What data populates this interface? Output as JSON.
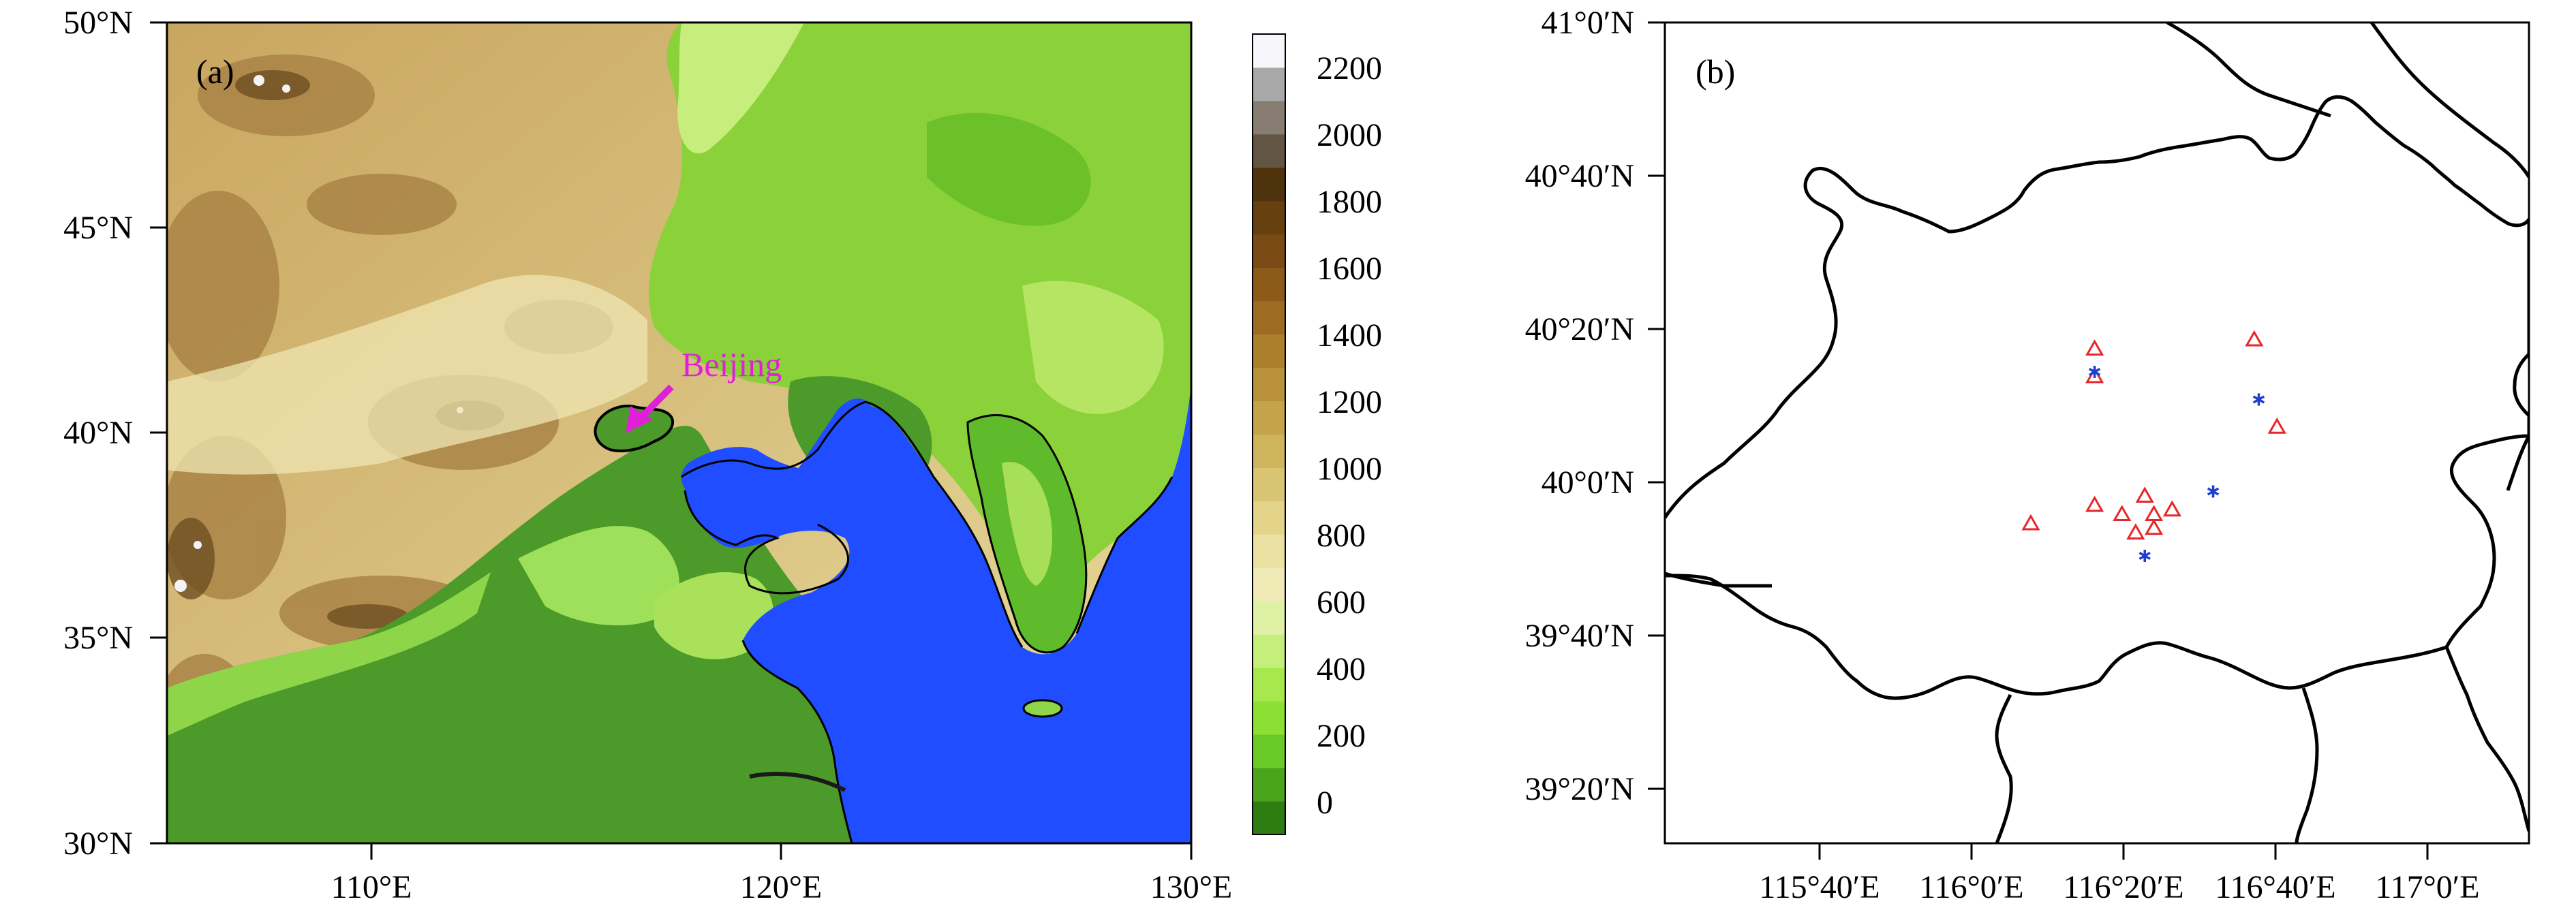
{
  "panel_a": {
    "label": "(a)",
    "lat_ticks": [
      "50°N",
      "45°N",
      "40°N",
      "35°N",
      "30°N"
    ],
    "lon_ticks": [
      "110°E",
      "120°E",
      "130°E"
    ],
    "annotation": "Beijing",
    "colorbar_ticks": [
      "2200",
      "2000",
      "1800",
      "1600",
      "1400",
      "1200",
      "1000",
      "800",
      "600",
      "400",
      "200",
      "0"
    ],
    "colorbar_colors": [
      "#2e7d12",
      "#4aa51c",
      "#6acb28",
      "#8ce034",
      "#a6e84e",
      "#c3ef7a",
      "#dff1a4",
      "#efeab6",
      "#ebe1a2",
      "#e3d48a",
      "#d9c474",
      "#cfb55e",
      "#c4a34a",
      "#b8913a",
      "#ac7f2c",
      "#9d6c22",
      "#8c5b1a",
      "#7a4b14",
      "#66400f",
      "#4f330c",
      "#625544",
      "#877d72",
      "#a8a8a8",
      "#f6f6fb"
    ],
    "colors": {
      "ocean": "#1f4dff",
      "plain": "#4c9a2a",
      "arrow": "#e020d8"
    }
  },
  "panel_b": {
    "label": "(b)",
    "lat_ticks": [
      "41°0′N",
      "40°40′N",
      "40°20′N",
      "40°0′N",
      "39°40′N",
      "39°20′N"
    ],
    "lon_ticks": [
      "115°40′E",
      "116°0′E",
      "116°20′E",
      "116°40′E",
      "117°0′E"
    ],
    "colors": {
      "triangle": "#e8262a",
      "star": "#1c3fd0"
    },
    "triangle_sites": [
      {
        "lon": 116.27,
        "lat": 40.29
      },
      {
        "lon": 116.27,
        "lat": 40.23
      },
      {
        "lon": 116.62,
        "lat": 40.31
      },
      {
        "lon": 116.67,
        "lat": 40.12
      },
      {
        "lon": 116.13,
        "lat": 39.91
      },
      {
        "lon": 116.27,
        "lat": 39.95
      },
      {
        "lon": 116.33,
        "lat": 39.93
      },
      {
        "lon": 116.38,
        "lat": 39.97
      },
      {
        "lon": 116.4,
        "lat": 39.93
      },
      {
        "lon": 116.44,
        "lat": 39.94
      },
      {
        "lon": 116.36,
        "lat": 39.89
      },
      {
        "lon": 116.4,
        "lat": 39.9
      }
    ],
    "star_sites": [
      {
        "lon": 116.27,
        "lat": 40.24
      },
      {
        "lon": 116.63,
        "lat": 40.18
      },
      {
        "lon": 116.53,
        "lat": 39.98
      },
      {
        "lon": 116.38,
        "lat": 39.84
      }
    ]
  }
}
